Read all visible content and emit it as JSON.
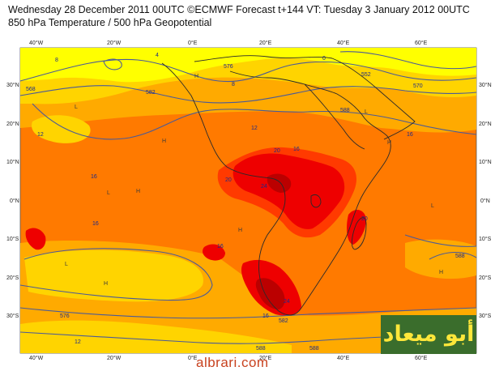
{
  "header": {
    "line1": "Wednesday 28 December 2011 00UTC ©ECMWF Forecast t+144 VT: Tuesday 3 January 2012 00UTC",
    "line2": "850 hPa Temperature / 500 hPa Geopotential"
  },
  "axes": {
    "lon_top": [
      "40°W",
      "20°W",
      "0°E",
      "20°E",
      "40°E",
      "60°E"
    ],
    "lon_bottom": [
      "40°W",
      "20°W",
      "0°E",
      "20°E",
      "40°E",
      "60°E"
    ],
    "lat_left": [
      "30°N",
      "20°N",
      "10°N",
      "0°N",
      "10°S",
      "20°S",
      "30°S"
    ],
    "lat_right": [
      "30°N",
      "20°N",
      "10°N",
      "0°N",
      "10°S",
      "20°S",
      "30°S"
    ]
  },
  "contour_labels": [
    "12",
    "12",
    "16",
    "16",
    "16",
    "16",
    "20",
    "24",
    "20",
    "20",
    "24",
    "16",
    "16",
    "12",
    "4",
    "8",
    "0",
    "8",
    "576",
    "568",
    "570",
    "552",
    "582",
    "588",
    "576",
    "582",
    "588",
    "588",
    "588"
  ],
  "pressure_centers": [
    "H",
    "H",
    "H",
    "H",
    "H",
    "H",
    "H",
    "L",
    "L",
    "L",
    "L",
    "L"
  ],
  "temperature_colors": {
    "cold": "#ffff00",
    "cool": "#ffd400",
    "mild": "#ffaa00",
    "warm": "#ff7a00",
    "hot": "#ff3a00",
    "very_hot": "#ee0000",
    "extreme": "#bb0000",
    "geopotential_lines": "#4a5a98",
    "coastline": "#2a2a2a"
  },
  "logo": {
    "text": "أبو ميعاد"
  },
  "watermark": {
    "text": "albrari.com"
  }
}
